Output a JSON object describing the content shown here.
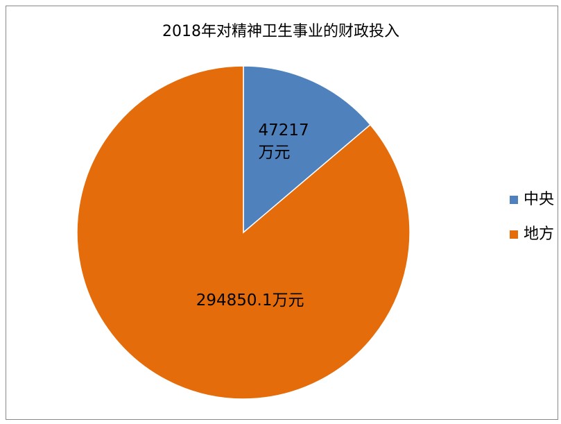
{
  "chart_data": {
    "type": "pie",
    "title": "2018年对精神卫生事业的财政投入",
    "categories": [
      "中央",
      "地方"
    ],
    "values": [
      47217,
      294850.1
    ],
    "value_labels": [
      "47217万元",
      "294850.1万元"
    ],
    "colors": [
      "#4f81bd",
      "#e46c0a"
    ],
    "legend": "right"
  }
}
